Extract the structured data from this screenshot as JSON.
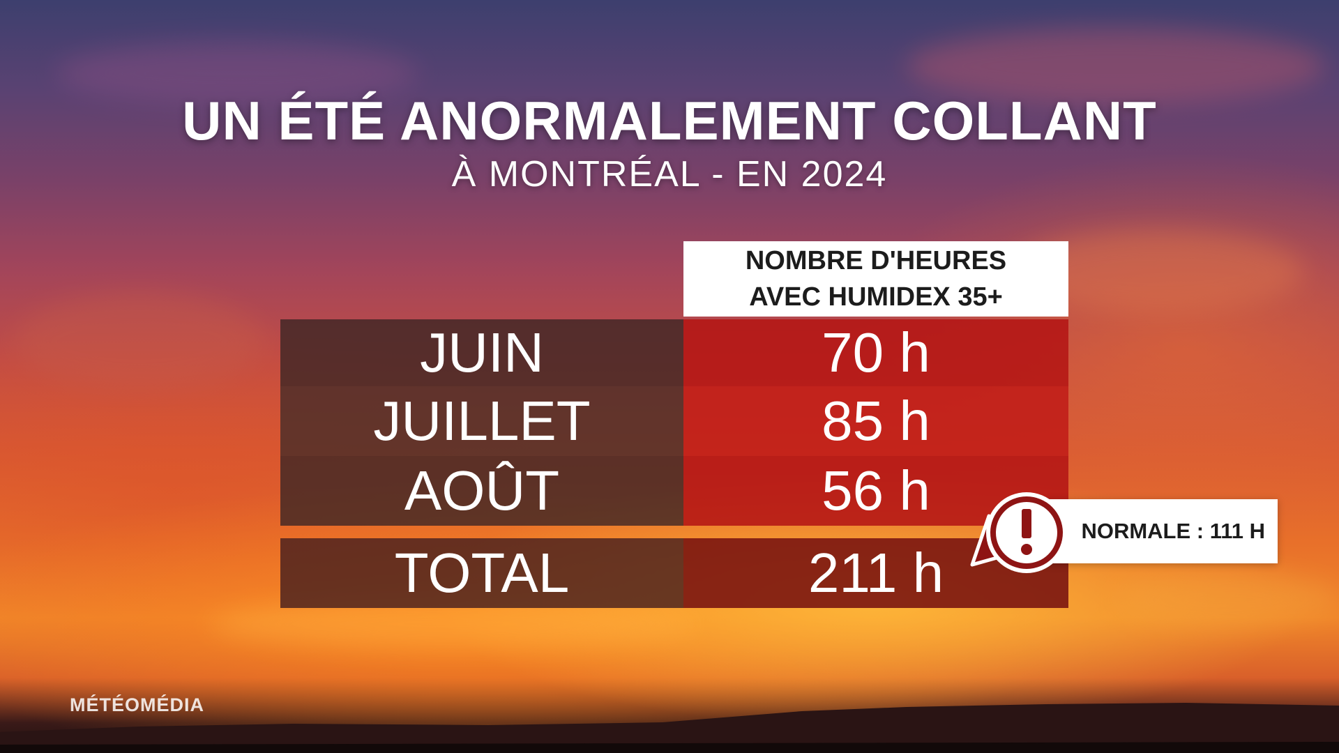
{
  "header": {
    "title": "UN ÉTÉ ANORMALEMENT COLLANT",
    "subtitle": "À MONTRÉAL - EN 2024"
  },
  "table": {
    "column_header_line1": "NOMBRE D'HEURES",
    "column_header_line2": "AVEC HUMIDEX 35+",
    "rows": [
      {
        "label": "JUIN",
        "value": "70 h"
      },
      {
        "label": "JUILLET",
        "value": "85 h"
      },
      {
        "label": "AOÛT",
        "value": "56 h"
      }
    ],
    "total": {
      "label": "TOTAL",
      "value": "211 h"
    }
  },
  "callout": {
    "icon": "alert-icon",
    "text": "NORMALE : 111 H"
  },
  "brand": {
    "name": "MÉTÉOMÉDIA"
  },
  "colors": {
    "value_red": "#b41614",
    "label_dark": "#3c2624",
    "header_bg": "#ffffff",
    "alert_dark_red": "#8e1414"
  }
}
